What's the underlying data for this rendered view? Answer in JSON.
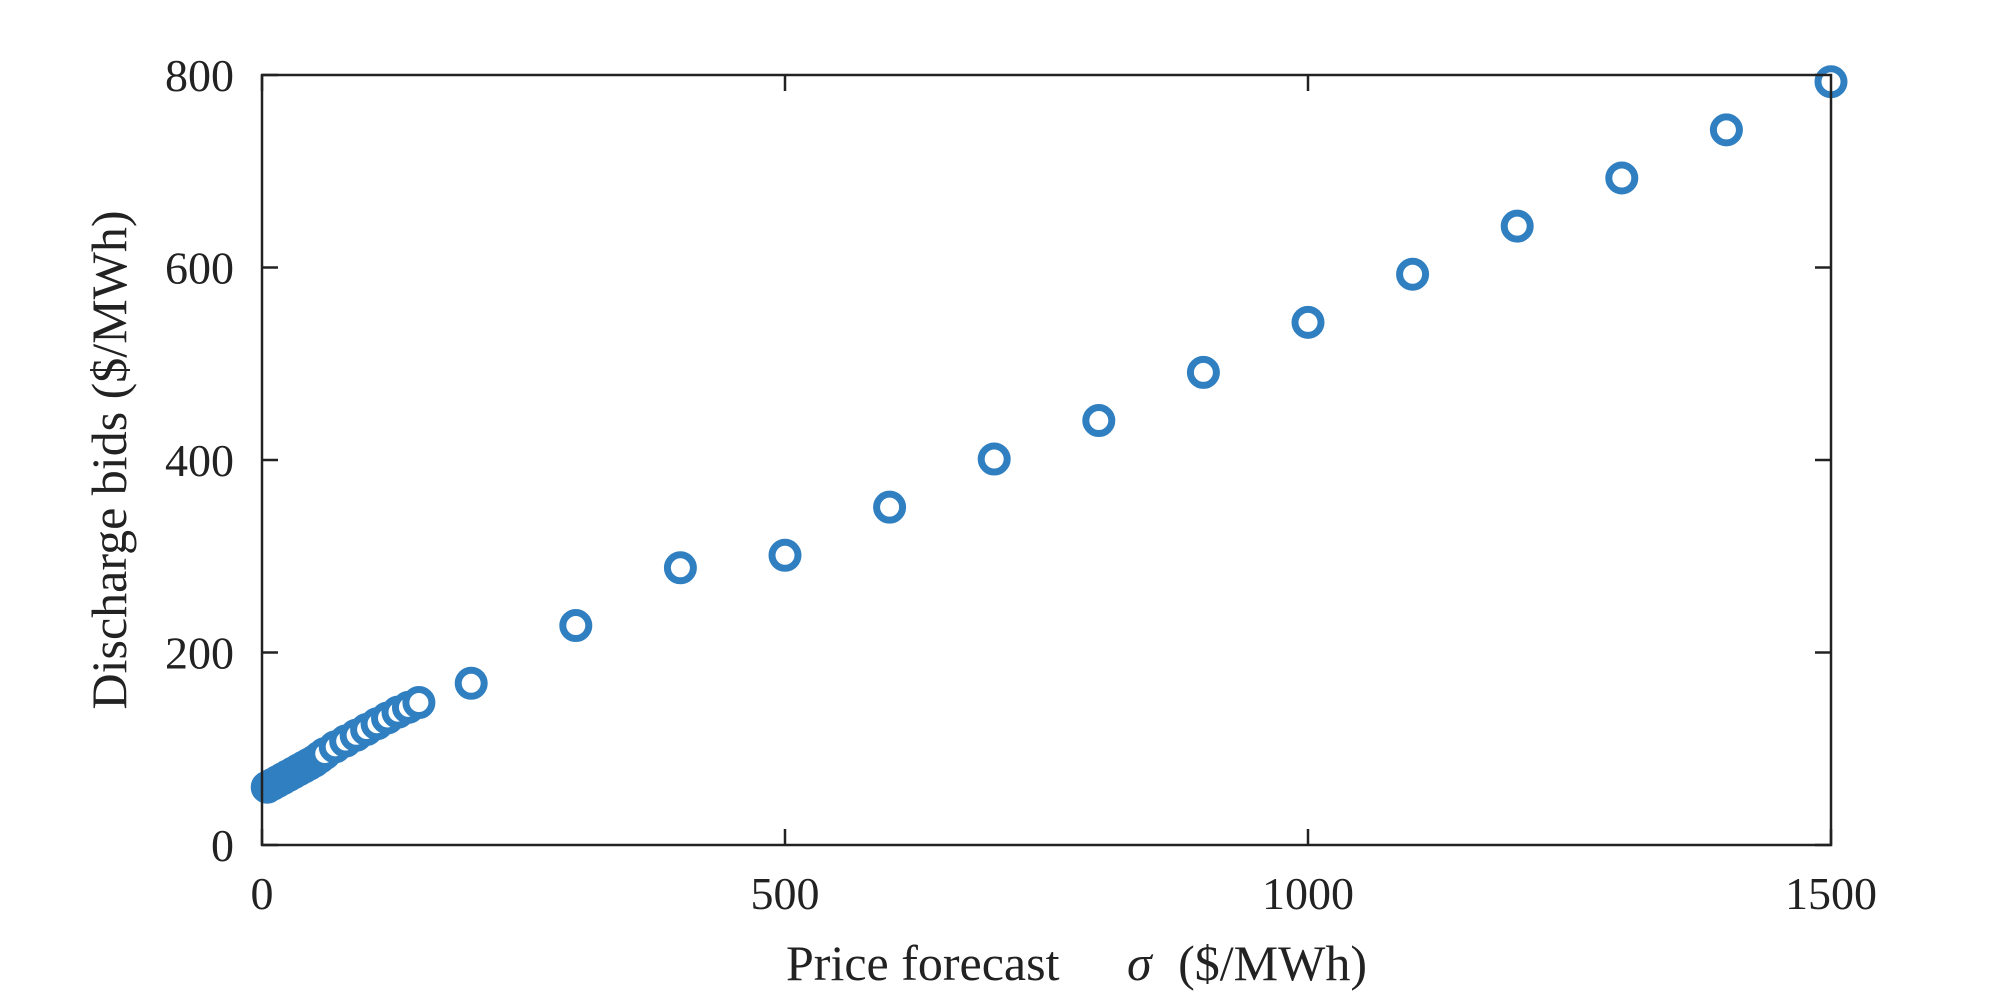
{
  "chart_data": {
    "type": "scatter",
    "title": "",
    "xlabel": "Price forecast",
    "xlabel_symbol": "σ",
    "xlabel_unit": "($/MWh)",
    "ylabel": "Discharge bids ($/MWh)",
    "xlim": [
      0,
      1500
    ],
    "ylim": [
      0,
      800
    ],
    "xticks": [
      "0",
      "500",
      "1000",
      "1500"
    ],
    "yticks": [
      "0",
      "200",
      "400",
      "600",
      "800"
    ],
    "grid": false,
    "legend": "none",
    "marker": "open-circle",
    "color": "#2f7fc1",
    "series": [
      {
        "x": [
          5,
          10,
          15,
          20,
          25,
          30,
          35,
          40,
          45,
          50,
          55,
          60,
          70,
          80,
          90,
          100,
          110,
          120,
          130,
          140,
          150,
          200,
          300,
          400,
          500,
          600,
          700,
          800,
          900,
          1000,
          1100,
          1200,
          1300,
          1400,
          1500
        ],
        "y": [
          60,
          63,
          66,
          69,
          72,
          75,
          78,
          81,
          84,
          87,
          91,
          95,
          102,
          108,
          114,
          120,
          126,
          132,
          138,
          143,
          148,
          168,
          228,
          288,
          301,
          351,
          401,
          441,
          491,
          543,
          593,
          643,
          693,
          743,
          793
        ]
      }
    ]
  }
}
